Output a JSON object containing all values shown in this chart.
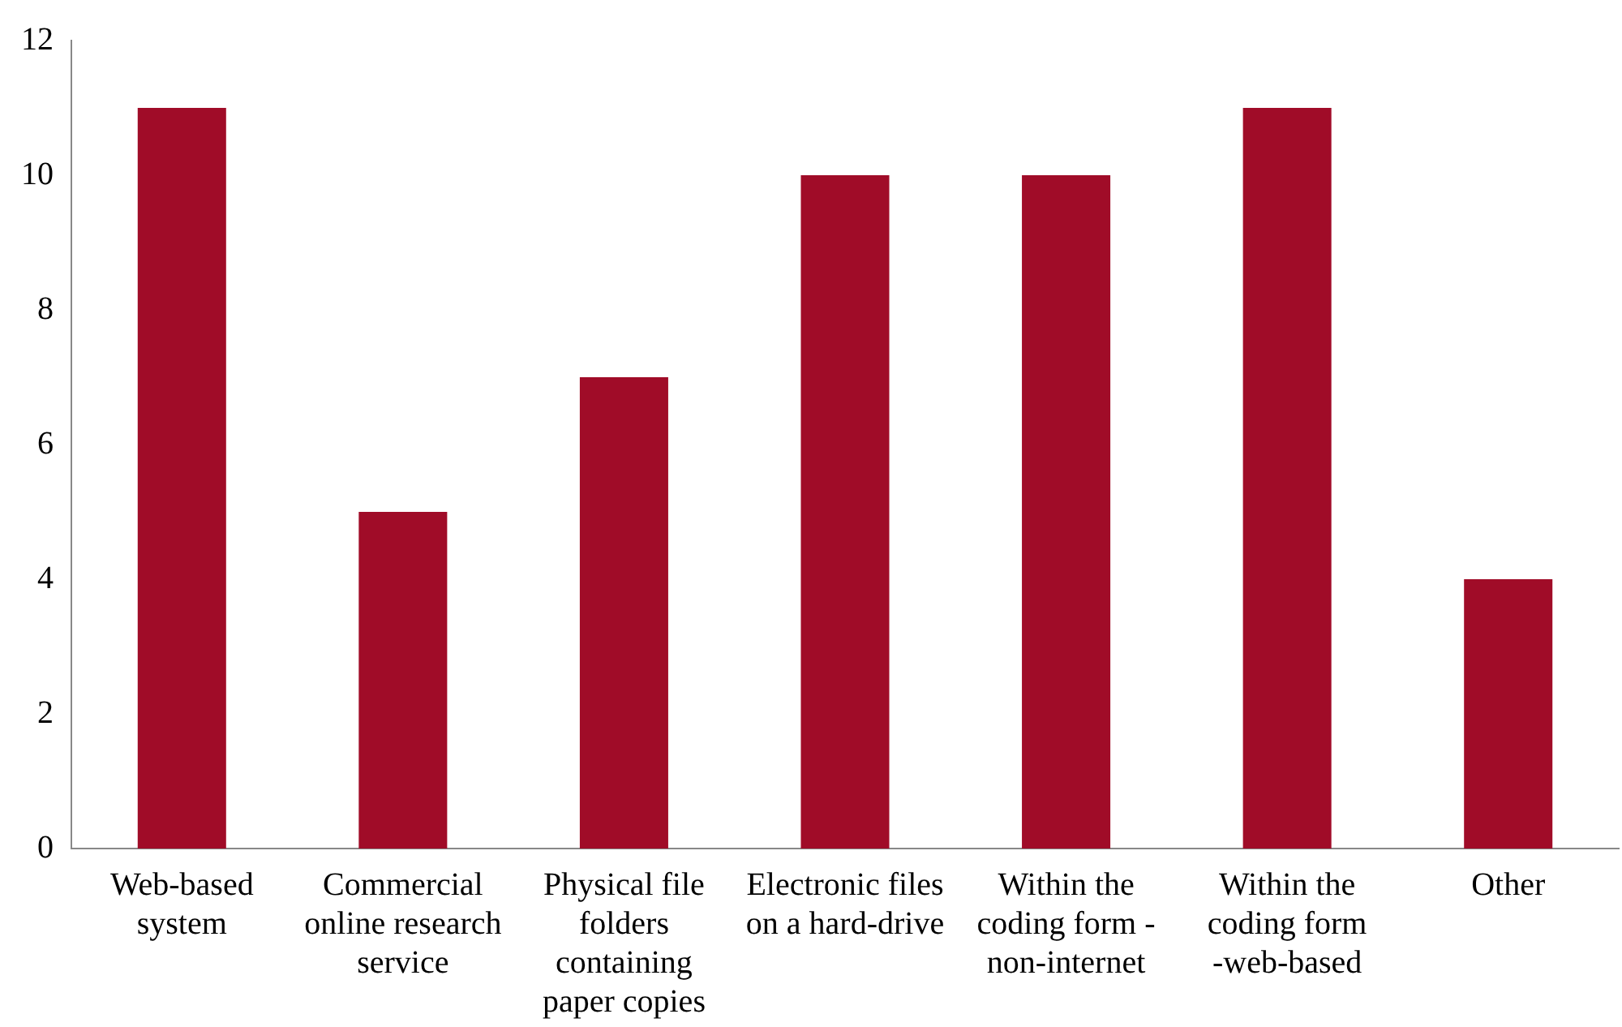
{
  "chart_data": {
    "type": "bar",
    "categories": [
      "Web-based system",
      "Commercial online research service",
      "Physical file folders containing paper copies",
      "Electronic files on a hard-drive",
      "Within the coding form - non-internet",
      "Within the coding form -web-based",
      "Other"
    ],
    "values": [
      11,
      5,
      7,
      10,
      10,
      11,
      4
    ],
    "color": "#a00c28",
    "ylim": [
      0,
      12
    ],
    "yticks": [
      0,
      2,
      4,
      6,
      8,
      10,
      12
    ],
    "grid": false,
    "legend": false
  }
}
